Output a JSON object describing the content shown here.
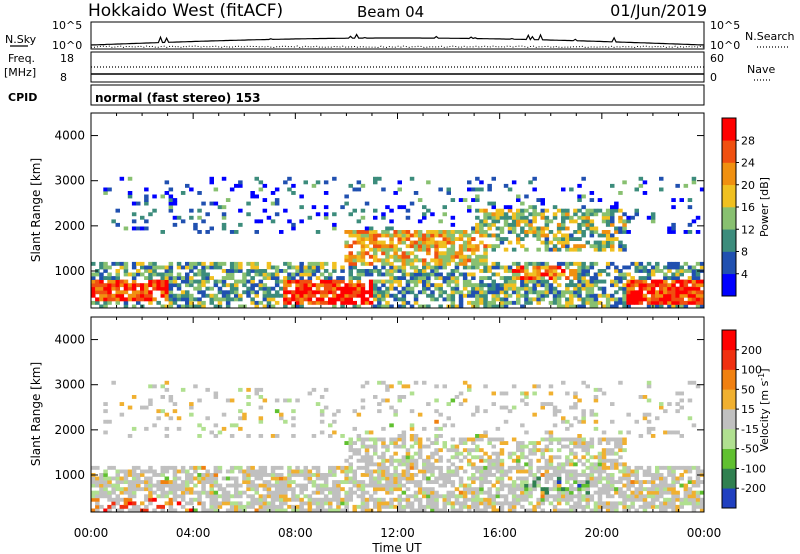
{
  "header": {
    "title": "Hokkaido West (fitACF)",
    "beam": "Beam 04",
    "date": "01/Jun/2019"
  },
  "status_panels": {
    "nsky_label": "N.Sky",
    "nsearch_label": "N.Search",
    "freq_label": "Freq.",
    "freq_unit": "[MHz]",
    "nave_label": "Nave",
    "cpid_label": "CPID",
    "noise_ticks": [
      "10^5",
      "10^0"
    ],
    "freq_ticks": [
      "18",
      "8"
    ],
    "nave_ticks": [
      "60",
      "0"
    ],
    "cpid_text": "normal (fast stereo) 153"
  },
  "chart_data": [
    {
      "type": "heatmap",
      "name": "Power",
      "ylabel": "Slant Range [km]",
      "xlabel": "Time UT",
      "xlim": [
        0,
        24
      ],
      "ylim": [
        180,
        4500
      ],
      "x_tick_labels": [
        "00:00",
        "04:00",
        "08:00",
        "12:00",
        "16:00",
        "20:00",
        "00:00"
      ],
      "y_tick_labels": [
        "1000",
        "2000",
        "3000",
        "4000"
      ],
      "colorbar": {
        "label": "Power [dB]",
        "tick_labels": [
          "4",
          "8",
          "12",
          "16",
          "20",
          "24",
          "28"
        ],
        "range": [
          0,
          30
        ],
        "colors": [
          "#0000ff",
          "#2050b0",
          "#3c8c7c",
          "#88c070",
          "#f0c020",
          "#f09010",
          "#f05010",
          "#ff0000"
        ]
      },
      "regions": [
        {
          "t": [
            0,
            24
          ],
          "r": [
            200,
            1200
          ],
          "level": 0.35,
          "density": 0.65
        },
        {
          "t": [
            0,
            3
          ],
          "r": [
            300,
            800
          ],
          "level": 0.85,
          "density": 0.85
        },
        {
          "t": [
            7.5,
            11
          ],
          "r": [
            250,
            800
          ],
          "level": 0.85,
          "density": 0.8
        },
        {
          "t": [
            10,
            15.5
          ],
          "r": [
            1100,
            1900
          ],
          "level": 0.6,
          "density": 0.75
        },
        {
          "t": [
            15,
            21
          ],
          "r": [
            1400,
            2400
          ],
          "level": 0.45,
          "density": 0.6
        },
        {
          "t": [
            16.5,
            19
          ],
          "r": [
            800,
            1100
          ],
          "level": 0.7,
          "density": 0.8
        },
        {
          "t": [
            21,
            24
          ],
          "r": [
            250,
            800
          ],
          "level": 0.9,
          "density": 0.85
        },
        {
          "t": [
            0.5,
            24
          ],
          "r": [
            1800,
            3100
          ],
          "level": 0.2,
          "density": 0.12
        }
      ]
    },
    {
      "type": "heatmap",
      "name": "Velocity",
      "ylabel": "Slant Range [km]",
      "xlabel": "Time UT",
      "xlim": [
        0,
        24
      ],
      "ylim": [
        180,
        4500
      ],
      "x_tick_labels": [
        "00:00",
        "04:00",
        "08:00",
        "12:00",
        "16:00",
        "20:00",
        "00:00"
      ],
      "y_tick_labels": [
        "1000",
        "2000",
        "3000",
        "4000"
      ],
      "colorbar": {
        "label": "Velocity [m s",
        "label_sup": "-1",
        "tick_labels": [
          "200",
          "100",
          "50",
          "15",
          "-15",
          "-50",
          "-100",
          "-200"
        ],
        "range": [
          -250,
          250
        ],
        "colors": [
          "#2040c0",
          "#308050",
          "#60c030",
          "#b0e090",
          "#c0c0c0",
          "#f0b030",
          "#f08010",
          "#f03010",
          "#ff0000"
        ]
      },
      "regions": [
        {
          "t": [
            0,
            24
          ],
          "r": [
            200,
            1200
          ],
          "level": 0.5,
          "density": 0.7
        },
        {
          "t": [
            0,
            4
          ],
          "r": [
            200,
            500
          ],
          "level": 0.8,
          "density": 0.6
        },
        {
          "t": [
            16.5,
            19.5
          ],
          "r": [
            600,
            1000
          ],
          "level": 0.25,
          "density": 0.75
        },
        {
          "t": [
            10,
            21
          ],
          "r": [
            1200,
            2400
          ],
          "level": 0.5,
          "density": 0.55
        },
        {
          "t": [
            0.5,
            24
          ],
          "r": [
            1800,
            3100
          ],
          "level": 0.5,
          "density": 0.12
        }
      ]
    }
  ]
}
